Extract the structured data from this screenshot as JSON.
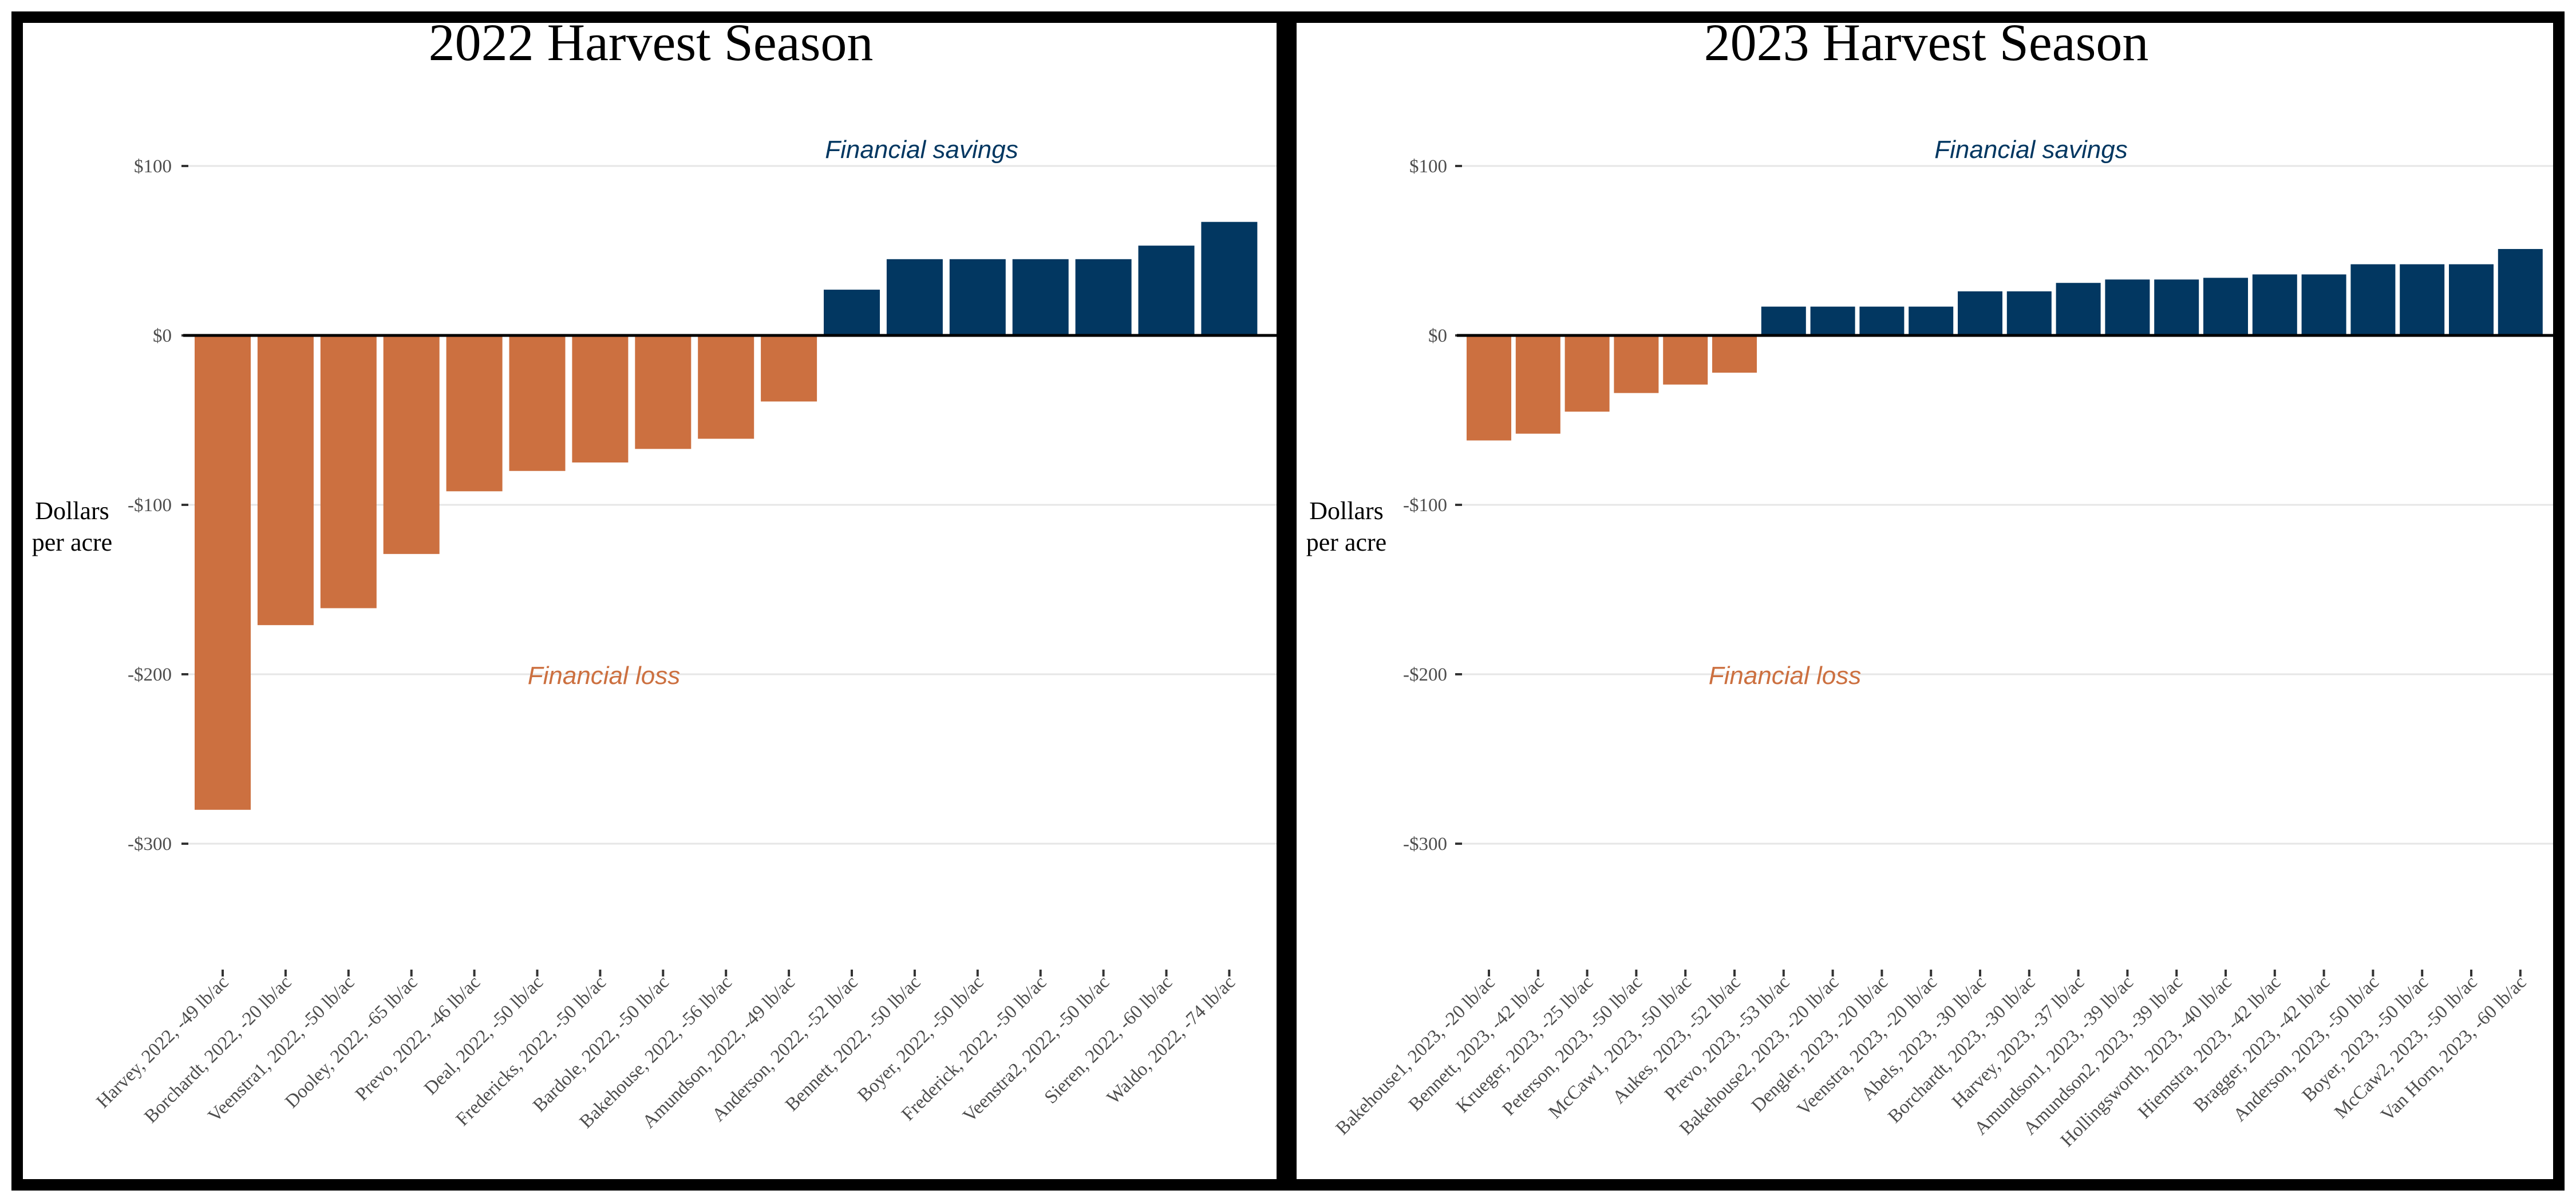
{
  "colors": {
    "loss": "#cc7040",
    "savings": "#023761",
    "border": "#000000",
    "grid": "#e6e6e6"
  },
  "ytick_labels": [
    "$100",
    "$0",
    "-$100",
    "-$200",
    "-$300"
  ],
  "ytick_values": [
    100,
    0,
    -100,
    -200,
    -300
  ],
  "ylabel_line1": "Dollars",
  "ylabel_line2": "per acre",
  "annotations": {
    "savings": "Financial savings",
    "loss": "Financial loss"
  },
  "chart_data": [
    {
      "type": "bar",
      "title": "2022 Harvest Season",
      "ylabel": "Dollars per acre",
      "ylim": [
        -340,
        120
      ],
      "grid": true,
      "categories": [
        "Harvey, 2022, -49 lb/ac",
        "Borchardt, 2022, -20 lb/ac",
        "Veenstra1, 2022, -50 lb/ac",
        "Dooley, 2022, -65 lb/ac",
        "Prevo, 2022, -46 lb/ac",
        "Deal, 2022, -50 lb/ac",
        "Fredericks, 2022, -50 lb/ac",
        "Bardole, 2022, -50 lb/ac",
        "Bakehouse, 2022, -56 lb/ac",
        "Amundson, 2022, -49 lb/ac",
        "Anderson, 2022, -52 lb/ac",
        "Bennett, 2022, -50 lb/ac",
        "Boyer, 2022, -50 lb/ac",
        "Frederick, 2022, -50 lb/ac",
        "Veenstra2, 2022, -50 lb/ac",
        "Sieren, 2022, -60 lb/ac",
        "Waldo, 2022, -74 lb/ac"
      ],
      "values": [
        -280,
        -171,
        -161,
        -129,
        -92,
        -80,
        -75,
        -67,
        -61,
        -39,
        27,
        45,
        45,
        45,
        45,
        53,
        67
      ]
    },
    {
      "type": "bar",
      "title": "2023 Harvest Season",
      "ylabel": "Dollars per acre",
      "ylim": [
        -340,
        120
      ],
      "grid": true,
      "categories": [
        "Bakehouse1, 2023, -20 lb/ac",
        "Bennett, 2023, -42 lb/ac",
        "Krueger, 2023, -25 lb/ac",
        "Peterson, 2023, -50 lb/ac",
        "McCaw1, 2023, -50 lb/ac",
        "Aukes, 2023, -52 lb/ac",
        "Prevo, 2023, -53 lb/ac",
        "Bakehouse2, 2023, -20 lb/ac",
        "Dengler, 2023, -20 lb/ac",
        "Veenstra, 2023, -20 lb/ac",
        "Abels, 2023, -30 lb/ac",
        "Borchardt, 2023, -30 lb/ac",
        "Harvey, 2023, -37 lb/ac",
        "Amundson1, 2023, -39 lb/ac",
        "Amundson2, 2023, -39 lb/ac",
        "Hollingsworth, 2023, -40 lb/ac",
        "Hiemstra, 2023, -42 lb/ac",
        "Bragger, 2023, -42 lb/ac",
        "Anderson, 2023, -50 lb/ac",
        "Boyer, 2023, -50 lb/ac",
        "McCaw2, 2023, -50 lb/ac",
        "Van Horn, 2023, -60 lb/ac"
      ],
      "values": [
        -62,
        -58,
        -45,
        -34,
        -29,
        -22,
        17,
        17,
        17,
        17,
        26,
        26,
        31,
        33,
        33,
        34,
        36,
        36,
        42,
        42,
        42,
        51
      ]
    }
  ]
}
